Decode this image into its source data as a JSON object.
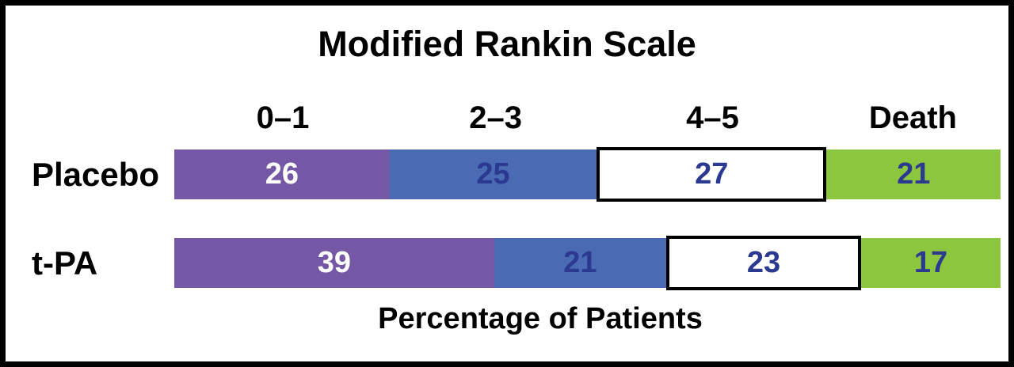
{
  "title": "Modified Rankin Scale",
  "xlabel": "Percentage of Patients",
  "columns": [
    "0–1",
    "2–3",
    "4–5",
    "Death"
  ],
  "rows": [
    {
      "label": "Placebo",
      "values": [
        26,
        25,
        27,
        21
      ]
    },
    {
      "label": "t-PA",
      "values": [
        39,
        21,
        23,
        17
      ]
    }
  ],
  "colors": {
    "mrs01_purple": "#7558A5",
    "mrs23_blue": "#4A6AB3",
    "mrs45_white": "#FFFFFF",
    "death_green": "#8CC63F",
    "value_text_light": "#FFFFFF",
    "value_text_dark": "#2B3990",
    "frame_border": "#000000"
  },
  "chart_data": {
    "type": "bar",
    "subtype": "horizontal-stacked-percentage",
    "title": "Modified Rankin Scale",
    "xlabel": "Percentage of Patients",
    "categories": [
      "Placebo",
      "t-PA"
    ],
    "series": [
      {
        "name": "0–1",
        "values": [
          26,
          39
        ],
        "color": "#7558A5",
        "label_color": "#FFFFFF"
      },
      {
        "name": "2–3",
        "values": [
          25,
          21
        ],
        "color": "#4A6AB3",
        "label_color": "#2B3990"
      },
      {
        "name": "4–5",
        "values": [
          27,
          23
        ],
        "color": "#FFFFFF",
        "label_color": "#2B3990",
        "outline": "#000000"
      },
      {
        "name": "Death",
        "values": [
          21,
          17
        ],
        "color": "#8CC63F",
        "label_color": "#2B3990"
      }
    ],
    "xlim": [
      0,
      100
    ],
    "grid": false,
    "legend_position": "column headers above bars, aligned to first row segments",
    "data_labels": "inside segments"
  }
}
